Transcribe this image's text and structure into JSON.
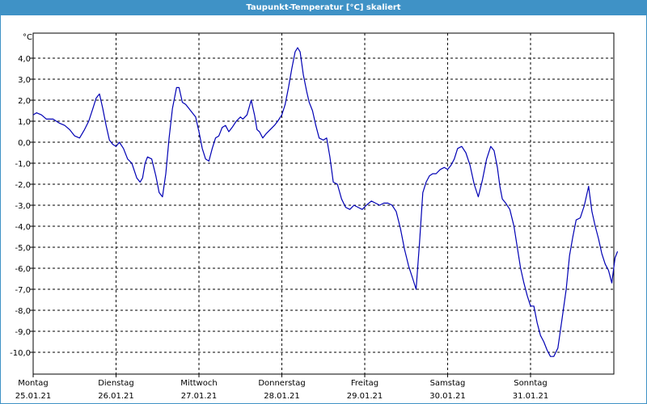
{
  "window": {
    "title": "Taupunkt-Temperatur [°C] skaliert"
  },
  "colors": {
    "title_bar": "#3f92c6",
    "title_text": "#ffffff",
    "line": "#0000b4",
    "grid": "#000000"
  },
  "chart_data": {
    "type": "line",
    "title": "Taupunkt-Temperatur [°C] skaliert",
    "ylabel": "°C",
    "xlabel": "",
    "ylim": [
      -11,
      5.1
    ],
    "xlim": [
      0,
      7.05
    ],
    "grid": true,
    "y_ticks": [
      4,
      3,
      2,
      1,
      0,
      -1,
      -2,
      -3,
      -4,
      -5,
      -6,
      -7,
      -8,
      -9,
      -10
    ],
    "y_tick_labels": [
      "4,0",
      "3,0",
      "2,0",
      "1,0",
      "0,0",
      "-1,0",
      "-2,0",
      "-3,0",
      "-4,0",
      "-5,0",
      "-6,0",
      "-7,0",
      "-8,0",
      "-9,0",
      "-10,0"
    ],
    "x_tick_days": [
      "Montag",
      "Dienstag",
      "Mittwoch",
      "Donnerstag",
      "Freitag",
      "Samstag",
      "Sonntag"
    ],
    "x_tick_dates": [
      "25.01.21",
      "26.01.21",
      "27.01.21",
      "28.01.21",
      "29.01.21",
      "30.01.21",
      "31.01.21"
    ],
    "series": [
      {
        "x": [
          0.0,
          0.04,
          0.1,
          0.16,
          0.24,
          0.32,
          0.38,
          0.44,
          0.5,
          0.56,
          0.62,
          0.67,
          0.72,
          0.76,
          0.8,
          0.84,
          0.88,
          0.92,
          0.96,
          1.0,
          1.04,
          1.09,
          1.14,
          1.19,
          1.25,
          1.29,
          1.32,
          1.35,
          1.38,
          1.43,
          1.48,
          1.52,
          1.56,
          1.6,
          1.64,
          1.68,
          1.73,
          1.76,
          1.8,
          1.84,
          1.88,
          1.92,
          1.96,
          2.0,
          2.04,
          2.08,
          2.12,
          2.16,
          2.2,
          2.24,
          2.28,
          2.32,
          2.36,
          2.4,
          2.45,
          2.5,
          2.53,
          2.58,
          2.63,
          2.67,
          2.7,
          2.73,
          2.77,
          2.81,
          2.86,
          2.91,
          2.95,
          3.0,
          3.04,
          3.08,
          3.12,
          3.16,
          3.19,
          3.22,
          3.26,
          3.3,
          3.33,
          3.37,
          3.41,
          3.45,
          3.5,
          3.54,
          3.58,
          3.62,
          3.67,
          3.72,
          3.77,
          3.82,
          3.87,
          3.92,
          3.97,
          4.02,
          4.08,
          4.13,
          4.18,
          4.23,
          4.28,
          4.33,
          4.38,
          4.43,
          4.48,
          4.53,
          4.58,
          4.62,
          4.66,
          4.7,
          4.74,
          4.78,
          4.82,
          4.86,
          4.91,
          4.96,
          5.0,
          5.04,
          5.08,
          5.12,
          5.17,
          5.22,
          5.27,
          5.32,
          5.37,
          5.42,
          5.47,
          5.52,
          5.56,
          5.6,
          5.63,
          5.66,
          5.7,
          5.75,
          5.8,
          5.84,
          5.88,
          5.92,
          5.96,
          6.0,
          6.04,
          6.08,
          6.12,
          6.16,
          6.2,
          6.24,
          6.28,
          6.33,
          6.38,
          6.43,
          6.47,
          6.51,
          6.55,
          6.6,
          6.65,
          6.7,
          6.74,
          6.78,
          6.82,
          6.86,
          6.9,
          6.94,
          6.98,
          7.02,
          7.05
        ],
        "y": [
          1.3,
          1.4,
          1.3,
          1.1,
          1.1,
          0.9,
          0.8,
          0.6,
          0.3,
          0.2,
          0.6,
          1.0,
          1.6,
          2.1,
          2.3,
          1.6,
          0.8,
          0.1,
          -0.1,
          -0.2,
          0.0,
          -0.3,
          -0.8,
          -1.0,
          -1.7,
          -1.9,
          -1.7,
          -1.0,
          -0.7,
          -0.8,
          -1.6,
          -2.4,
          -2.6,
          -1.5,
          0.2,
          1.6,
          2.6,
          2.6,
          1.9,
          1.8,
          1.6,
          1.4,
          1.2,
          0.5,
          -0.3,
          -0.8,
          -0.9,
          -0.3,
          0.2,
          0.3,
          0.7,
          0.8,
          0.5,
          0.7,
          1.0,
          1.2,
          1.1,
          1.3,
          2.0,
          1.3,
          0.6,
          0.5,
          0.2,
          0.4,
          0.6,
          0.8,
          1.0,
          1.3,
          1.8,
          2.6,
          3.5,
          4.3,
          4.5,
          4.3,
          3.2,
          2.4,
          1.9,
          1.5,
          0.8,
          0.2,
          0.1,
          0.2,
          -0.7,
          -1.9,
          -2.0,
          -2.7,
          -3.1,
          -3.2,
          -3.0,
          -3.1,
          -3.2,
          -3.0,
          -2.8,
          -2.9,
          -3.0,
          -2.9,
          -2.9,
          -3.0,
          -3.3,
          -4.1,
          -5.1,
          -5.9,
          -6.5,
          -7.0,
          -4.8,
          -2.4,
          -1.9,
          -1.6,
          -1.5,
          -1.5,
          -1.3,
          -1.2,
          -1.3,
          -1.1,
          -0.8,
          -0.3,
          -0.2,
          -0.5,
          -1.1,
          -2.0,
          -2.6,
          -1.8,
          -0.8,
          -0.2,
          -0.4,
          -1.2,
          -2.1,
          -2.7,
          -2.9,
          -3.2,
          -4.0,
          -5.0,
          -6.0,
          -6.7,
          -7.3,
          -7.8,
          -7.8,
          -8.6,
          -9.2,
          -9.5,
          -9.9,
          -10.2,
          -10.2,
          -9.8,
          -8.4,
          -7.0,
          -5.4,
          -4.5,
          -3.7,
          -3.6,
          -3.0,
          -2.1,
          -3.3,
          -4.0,
          -4.6,
          -5.3,
          -5.8,
          -6.1,
          -6.7,
          -5.5,
          -5.2
        ]
      }
    ]
  }
}
